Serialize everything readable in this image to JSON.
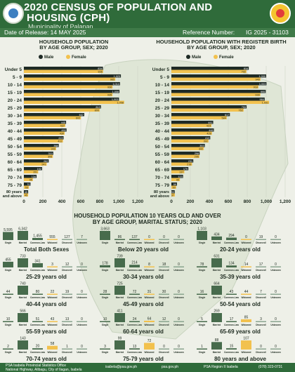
{
  "header": {
    "title_line1": "2020 CENSUS OF POPULATION AND",
    "title_line2": "HOUSING (CPH)",
    "subtitle": "Municipality of Palanan",
    "release_label": "Date of Release: 14 MAY 2025",
    "ref_label": "Reference Number:",
    "ref_value": "IG 2025 - 31103",
    "right_logo_caption": "BAGONG PILIPINAS"
  },
  "colors": {
    "male": "#1e2a25",
    "female": "#f2c14e",
    "single": "#476b4c",
    "married": "#476b4c",
    "bar_male": "#1e2a25",
    "bar_female": "#f2c14e"
  },
  "left_chart_title_1": "HOUSEHOLD POPULATION",
  "left_chart_title_2": "BY AGE GROUP, SEX; 2020",
  "right_chart_title_1": "HOUSEHOLD POPULATION WITH REGISTER BIRTH",
  "right_chart_title_2": "BY AGE GROUP, SEX; 2020",
  "legend": {
    "male": "Male",
    "female": "Female"
  },
  "mid_title_1": "HOUSEHOLD POPULATION 10 YEARS OLD AND OVER",
  "mid_title_2": "BY AGE GROUP, MARITAL STATUS; 2020",
  "chart_data": [
    {
      "type": "bar",
      "title": "HOUSEHOLD POPULATION BY AGE GROUP, SEX; 2020",
      "categories": [
        "Under 5",
        "5 - 9",
        "10 - 14",
        "15 - 19",
        "20 - 24",
        "25 - 29",
        "30 - 34",
        "35 - 39",
        "40 - 44",
        "45 - 49",
        "50 - 54",
        "55 - 59",
        "60 - 64",
        "65 - 69",
        "70 - 74",
        "75 - 79",
        "80 years and above"
      ],
      "series": [
        {
          "name": "Male",
          "values": [
            834,
            1023,
            1014,
            1008,
            1003,
            813,
            637,
            445,
            450,
            419,
            368,
            310,
            262,
            192,
            134,
            70,
            45
          ]
        },
        {
          "name": "Female",
          "values": [
            836,
            965,
            936,
            935,
            1058,
            800,
            602,
            437,
            430,
            412,
            340,
            306,
            241,
            151,
            95,
            53,
            45
          ]
        }
      ],
      "xlim": [
        0,
        1200
      ],
      "xticks": [
        0,
        200,
        400,
        600,
        800,
        "1,000",
        "1,200"
      ]
    },
    {
      "type": "bar",
      "title": "HOUSEHOLD POPULATION WITH REGISTER BIRTH BY AGE GROUP, SEX; 2020",
      "categories": [
        "Under 5",
        "5 - 9",
        "10 - 14",
        "15 - 19",
        "20 - 24",
        "25 - 29",
        "30 - 34",
        "35 - 39",
        "40 - 44",
        "45 - 49",
        "50 - 54",
        "55 - 59",
        "60 - 64",
        "65 - 69",
        "70 - 74",
        "75 - 79",
        "80 years and above"
      ],
      "series": [
        {
          "name": "Male",
          "values": [
            816,
            1000,
            1003,
            995,
            984,
            793,
            617,
            441,
            448,
            410,
            353,
            298,
            231,
            179,
            123,
            59,
            35
          ]
        },
        {
          "name": "Female",
          "values": [
            792,
            940,
            918,
            939,
            1031,
            762,
            584,
            423,
            428,
            392,
            342,
            296,
            218,
            137,
            90,
            50,
            37
          ]
        }
      ],
      "xlim": [
        0,
        1200
      ],
      "xticks": [
        0,
        200,
        400,
        600,
        800,
        "1,000",
        "1,200"
      ]
    }
  ],
  "marital_categories": [
    "Single",
    "Married",
    "Common-Law/Live-in",
    "Widowed",
    "Divorced/ Separated/ Annulled",
    "Unknown"
  ],
  "marital_groups": [
    {
      "label": "Total Both Sexes",
      "values": [
        5595,
        6342,
        1455,
        555,
        127,
        7
      ]
    },
    {
      "label": "Below 20 years old",
      "values": [
        3663,
        86,
        137,
        0,
        0,
        0
      ]
    },
    {
      "label": "20-24 years old",
      "values": [
        1103,
        434,
        294,
        0,
        19,
        0
      ]
    },
    {
      "label": "25-29 years old",
      "values": [
        455,
        733,
        341,
        3,
        12,
        0
      ]
    },
    {
      "label": "30-34 years old",
      "values": [
        178,
        739,
        214,
        8,
        18,
        0
      ]
    },
    {
      "label": "35-39 years old",
      "values": [
        78,
        631,
        134,
        14,
        17,
        0
      ]
    },
    {
      "label": "40-44 years old",
      "values": [
        44,
        740,
        80,
        22,
        19,
        0
      ]
    },
    {
      "label": "45-49 years old",
      "values": [
        28,
        725,
        72,
        31,
        30,
        0
      ]
    },
    {
      "label": "50-54 years old",
      "values": [
        16,
        664,
        43,
        44,
        7,
        0
      ]
    },
    {
      "label": "55-59 years old",
      "values": [
        10,
        566,
        51,
        43,
        13,
        0
      ]
    },
    {
      "label": "60-64 years old",
      "values": [
        10,
        411,
        24,
        64,
        12,
        0
      ]
    },
    {
      "label": "65-69 years old",
      "values": [
        5,
        269,
        17,
        85,
        3,
        0
      ]
    },
    {
      "label": "70-74 years old",
      "values": [
        2,
        143,
        20,
        58,
        1,
        0
      ]
    },
    {
      "label": "75-79 years old",
      "values": [
        3,
        99,
        13,
        72,
        0,
        0
      ]
    },
    {
      "label": "80 years and above",
      "values": [
        1,
        88,
        15,
        107,
        0,
        0
      ]
    }
  ],
  "footer": {
    "office": "PSA Isabela Provincial Statistics Office",
    "address": "National Highway, Alibagu, City of Ilagan, Isabela",
    "email": "isabela@psa.gov.ph",
    "web": "psa.gov.ph",
    "fb": "PSA Region II Isabela",
    "phone": "(078) 323-0731"
  }
}
